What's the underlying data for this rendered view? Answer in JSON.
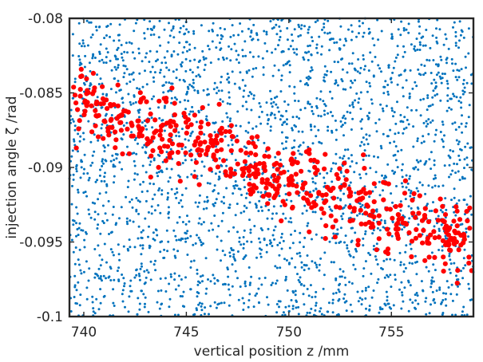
{
  "chart_data": {
    "type": "scatter",
    "title": "",
    "xlabel": "vertical position z /mm",
    "ylabel": "injection angle ζ /rad",
    "xlim": [
      739.3,
      759.0
    ],
    "ylim": [
      -0.1,
      -0.08
    ],
    "grid": false,
    "x_ticks": [
      740,
      745,
      750,
      755
    ],
    "x_tick_labels": [
      "740",
      "745",
      "750",
      "755"
    ],
    "y_ticks": [
      -0.1,
      -0.095,
      -0.09,
      -0.085,
      -0.08
    ],
    "y_tick_labels": [
      "-0.1",
      "-0.095",
      "-0.09",
      "-0.085",
      "-0.08"
    ],
    "series": [
      {
        "marker": "small-dot",
        "color": "#0072bd",
        "distribution": "uniform",
        "count": 2600,
        "x_range": [
          739.3,
          759.0
        ],
        "y_range": [
          -0.1,
          -0.08
        ]
      },
      {
        "marker": "large-dot",
        "color": "#ff0000",
        "distribution": "band",
        "count": 520,
        "x_range": [
          739.5,
          759.0
        ],
        "band_center_start": -0.0855,
        "band_center_end": -0.0955,
        "band_halfwidth": 0.0022,
        "x": [
          740,
          742,
          744,
          746,
          748,
          750,
          752,
          754,
          756,
          758
        ],
        "y": [
          -0.0858,
          -0.0868,
          -0.0879,
          -0.0889,
          -0.0899,
          -0.0909,
          -0.0919,
          -0.0929,
          -0.0939,
          -0.0949
        ]
      }
    ]
  }
}
